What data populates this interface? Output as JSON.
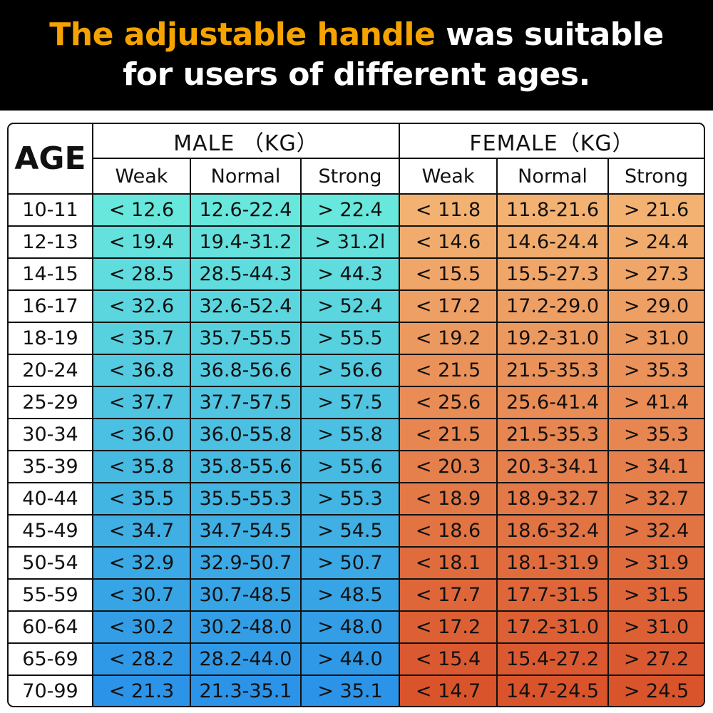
{
  "title": {
    "highlight": "The adjustable handle",
    "rest_line1": " was suitable",
    "line2": "for users of different ages."
  },
  "colors": {
    "highlight": "#f5a300",
    "male_top": "#68e7dc",
    "male_bottom": "#2b93e8",
    "female_top": "#f3b272",
    "female_bottom": "#d9532b"
  },
  "table": {
    "age_header": "AGE",
    "male_header": "MALE （KG）",
    "female_header": "FEMALE（KG）",
    "sub_headers": [
      "Weak",
      "Normal",
      "Strong",
      "Weak",
      "Normal",
      "Strong"
    ],
    "rows": [
      {
        "age": "10-11",
        "m": [
          "< 12.6",
          "12.6-22.4",
          "> 22.4"
        ],
        "f": [
          "< 11.8",
          "11.8-21.6",
          "> 21.6"
        ]
      },
      {
        "age": "12-13",
        "m": [
          "< 19.4",
          "19.4-31.2",
          "> 31.2l"
        ],
        "f": [
          "< 14.6",
          "14.6-24.4",
          "> 24.4"
        ]
      },
      {
        "age": "14-15",
        "m": [
          "< 28.5",
          "28.5-44.3",
          "> 44.3"
        ],
        "f": [
          "< 15.5",
          "15.5-27.3",
          "> 27.3"
        ]
      },
      {
        "age": "16-17",
        "m": [
          "< 32.6",
          "32.6-52.4",
          "> 52.4"
        ],
        "f": [
          "< 17.2",
          "17.2-29.0",
          "> 29.0"
        ]
      },
      {
        "age": "18-19",
        "m": [
          "< 35.7",
          "35.7-55.5",
          "> 55.5"
        ],
        "f": [
          "< 19.2",
          "19.2-31.0",
          "> 31.0"
        ]
      },
      {
        "age": "20-24",
        "m": [
          "< 36.8",
          "36.8-56.6",
          "> 56.6"
        ],
        "f": [
          "< 21.5",
          "21.5-35.3",
          "> 35.3"
        ]
      },
      {
        "age": "25-29",
        "m": [
          "< 37.7",
          "37.7-57.5",
          "> 57.5"
        ],
        "f": [
          "< 25.6",
          "25.6-41.4",
          "> 41.4"
        ]
      },
      {
        "age": "30-34",
        "m": [
          "< 36.0",
          "36.0-55.8",
          "> 55.8"
        ],
        "f": [
          "< 21.5",
          "21.5-35.3",
          "> 35.3"
        ]
      },
      {
        "age": "35-39",
        "m": [
          "< 35.8",
          "35.8-55.6",
          "> 55.6"
        ],
        "f": [
          "< 20.3",
          "20.3-34.1",
          "> 34.1"
        ]
      },
      {
        "age": "40-44",
        "m": [
          "< 35.5",
          "35.5-55.3",
          "> 55.3"
        ],
        "f": [
          "< 18.9",
          "18.9-32.7",
          "> 32.7"
        ]
      },
      {
        "age": "45-49",
        "m": [
          "< 34.7",
          "34.7-54.5",
          "> 54.5"
        ],
        "f": [
          "< 18.6",
          "18.6-32.4",
          "> 32.4"
        ]
      },
      {
        "age": "50-54",
        "m": [
          "< 32.9",
          "32.9-50.7",
          "> 50.7"
        ],
        "f": [
          "< 18.1",
          "18.1-31.9",
          "> 31.9"
        ]
      },
      {
        "age": "55-59",
        "m": [
          "< 30.7",
          "30.7-48.5",
          "> 48.5"
        ],
        "f": [
          "< 17.7",
          "17.7-31.5",
          "> 31.5"
        ]
      },
      {
        "age": "60-64",
        "m": [
          "< 30.2",
          "30.2-48.0",
          "> 48.0"
        ],
        "f": [
          "< 17.2",
          "17.2-31.0",
          "> 31.0"
        ]
      },
      {
        "age": "65-69",
        "m": [
          "< 28.2",
          "28.2-44.0",
          "> 44.0"
        ],
        "f": [
          "< 15.4",
          "15.4-27.2",
          "> 27.2"
        ]
      },
      {
        "age": "70-99",
        "m": [
          "< 21.3",
          "21.3-35.1",
          "> 35.1"
        ],
        "f": [
          "< 14.7",
          "14.7-24.5",
          "> 24.5"
        ]
      }
    ]
  }
}
